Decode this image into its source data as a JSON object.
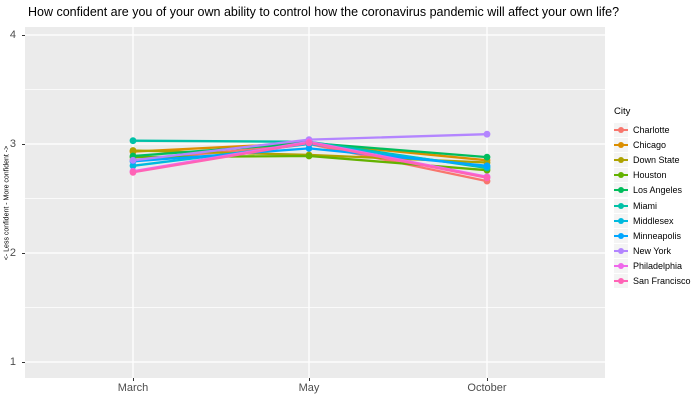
{
  "chart_data": {
    "type": "line",
    "title": "How confident are you of your own ability to control how the coronavirus pandemic will affect your own life?",
    "ylabel": "<- Less confident - More confident ->",
    "xlabel": "",
    "categories": [
      "March",
      "May",
      "October"
    ],
    "yticks": [
      1,
      2,
      3,
      4
    ],
    "ylim": [
      0.85,
      4.15
    ],
    "grid": true,
    "legend_title": "City",
    "legend_position": "right",
    "panel_bg": "#EBEBEB",
    "grid_color": "#FFFFFF",
    "axis_text_color": "#4D4D4D",
    "series": [
      {
        "name": "Charlotte",
        "color": "#F8766D",
        "values": [
          2.85,
          3.0,
          2.66
        ]
      },
      {
        "name": "Chicago",
        "color": "#DB8E00",
        "values": [
          2.93,
          3.01,
          2.85
        ]
      },
      {
        "name": "Down State",
        "color": "#AEA200",
        "values": [
          2.94,
          2.9,
          2.83
        ]
      },
      {
        "name": "Houston",
        "color": "#64B200",
        "values": [
          2.88,
          2.89,
          2.76
        ]
      },
      {
        "name": "Los Angeles",
        "color": "#00BD5C",
        "values": [
          2.89,
          3.01,
          2.88
        ]
      },
      {
        "name": "Miami",
        "color": "#00C1A7",
        "values": [
          3.03,
          3.02,
          2.78
        ]
      },
      {
        "name": "Middlesex",
        "color": "#00BADE",
        "values": [
          2.8,
          3.0,
          2.79
        ]
      },
      {
        "name": "Minneapolis",
        "color": "#00A6FF",
        "values": [
          2.84,
          2.96,
          2.8
        ]
      },
      {
        "name": "New York",
        "color": "#B385FF",
        "values": [
          2.85,
          3.04,
          3.09
        ]
      },
      {
        "name": "Philadelphia",
        "color": "#EF67EB",
        "values": [
          2.75,
          3.02,
          2.7
        ]
      },
      {
        "name": "San Francisco",
        "color": "#FF63B6",
        "values": [
          2.74,
          3.01,
          2.69
        ]
      }
    ]
  }
}
